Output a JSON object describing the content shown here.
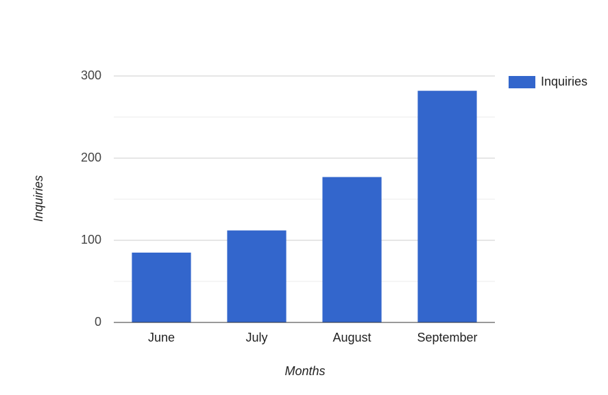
{
  "chart_data": {
    "type": "bar",
    "x_label": "Months",
    "y_label": "Inquiries",
    "categories": [
      "June",
      "July",
      "August",
      "September"
    ],
    "series": [
      {
        "name": "Inquiries",
        "color": "#3366cc",
        "values": [
          85,
          112,
          177,
          282
        ]
      }
    ],
    "ylim": [
      0,
      300
    ],
    "yticks": [
      0,
      100,
      200,
      300
    ],
    "minor_yticks": [
      50,
      150,
      250
    ],
    "grid": true,
    "legend": "right"
  }
}
